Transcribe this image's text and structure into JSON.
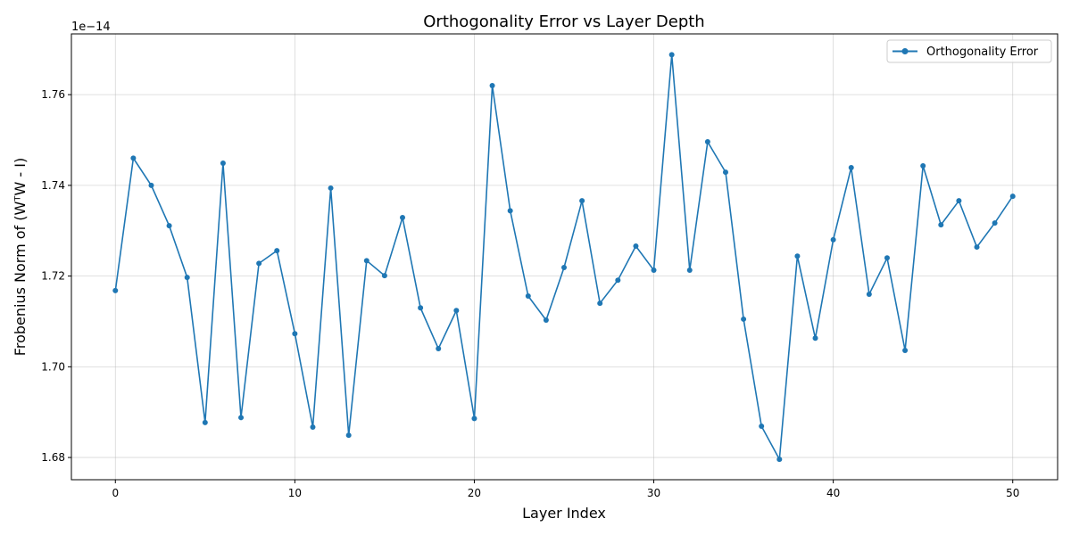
{
  "chart_data": {
    "type": "line",
    "title": "Orthogonality Error vs Layer Depth",
    "xlabel": "Layer Index",
    "ylabel": "Frobenius Norm of (WᵀW - I)",
    "y_offset_label": "1e−14",
    "xlim": [
      -2.45,
      52.5
    ],
    "ylim": [
      1.6751,
      1.7734
    ],
    "xticks": [
      0,
      10,
      20,
      30,
      40,
      50
    ],
    "xtick_labels": [
      "0",
      "10",
      "20",
      "30",
      "40",
      "50"
    ],
    "yticks": [
      1.68,
      1.7,
      1.72,
      1.74,
      1.76
    ],
    "ytick_labels": [
      "1.68",
      "1.70",
      "1.72",
      "1.74",
      "1.76"
    ],
    "grid": true,
    "legend_position": "top-right",
    "color": "#1f77b4",
    "series": [
      {
        "name": "Orthogonality Error",
        "marker": "circle",
        "x": [
          0,
          1,
          2,
          3,
          4,
          5,
          6,
          7,
          8,
          9,
          10,
          11,
          12,
          13,
          14,
          15,
          16,
          17,
          18,
          19,
          20,
          21,
          22,
          23,
          24,
          25,
          26,
          27,
          28,
          29,
          30,
          31,
          32,
          33,
          34,
          35,
          36,
          37,
          38,
          39,
          40,
          41,
          42,
          43,
          44,
          45,
          46,
          47,
          48,
          49,
          50
        ],
        "y": [
          1.7168,
          1.746,
          1.74,
          1.7311,
          1.7197,
          1.6877,
          1.7449,
          1.6888,
          1.7228,
          1.7256,
          1.7073,
          1.6867,
          1.7394,
          1.6849,
          1.7234,
          1.7201,
          1.7329,
          1.713,
          1.704,
          1.7124,
          1.6886,
          1.762,
          1.7344,
          1.7156,
          1.7103,
          1.7219,
          1.7366,
          1.714,
          1.7191,
          1.7266,
          1.7213,
          1.7688,
          1.7213,
          1.7496,
          1.7429,
          1.7105,
          1.6869,
          1.6796,
          1.7244,
          1.7063,
          1.728,
          1.7439,
          1.716,
          1.724,
          1.7036,
          1.7443,
          1.7313,
          1.7366,
          1.7264,
          1.7317,
          1.7376
        ]
      }
    ]
  }
}
